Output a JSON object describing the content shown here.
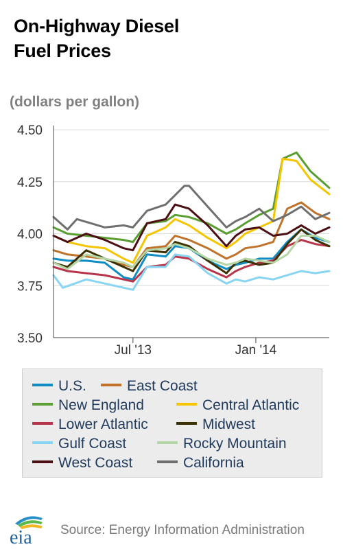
{
  "title_line1": "On-Highway Diesel",
  "title_line2": "Fuel Prices",
  "units": "(dollars per gallon)",
  "source": "Source: Energy Information Administration",
  "logo_text": "eia",
  "chart_data": {
    "type": "line",
    "title": "On-Highway Diesel Fuel Prices",
    "ylabel": "(dollars per gallon)",
    "ylim": [
      3.5,
      4.5
    ],
    "yticks": [
      {
        "value": 4.5,
        "label": "4.50"
      },
      {
        "value": 4.25,
        "label": "4.25"
      },
      {
        "value": 4.0,
        "label": "4.00"
      },
      {
        "value": 3.75,
        "label": "3.75"
      },
      {
        "value": 3.5,
        "label": "3.50"
      }
    ],
    "x_range": [
      "2013-03-04",
      "2014-04-21"
    ],
    "xticks": [
      {
        "date": "2013-07-01",
        "label": "Jul '13"
      },
      {
        "date": "2014-01-01",
        "label": "Jan '14"
      }
    ],
    "grid": "horizontal",
    "legend_position": "bottom",
    "series": [
      {
        "name": "U.S.",
        "color": "#0e8cc3",
        "points": [
          [
            "2013-03-04",
            3.88
          ],
          [
            "2013-03-25",
            3.87
          ],
          [
            "2013-04-22",
            3.87
          ],
          [
            "2013-05-20",
            3.86
          ],
          [
            "2013-06-17",
            3.79
          ],
          [
            "2013-07-01",
            3.78
          ],
          [
            "2013-07-22",
            3.9
          ],
          [
            "2013-08-19",
            3.89
          ],
          [
            "2013-09-02",
            3.94
          ],
          [
            "2013-09-23",
            3.93
          ],
          [
            "2013-10-21",
            3.87
          ],
          [
            "2013-11-18",
            3.83
          ],
          [
            "2013-12-02",
            3.85
          ],
          [
            "2013-12-16",
            3.86
          ],
          [
            "2014-01-06",
            3.88
          ],
          [
            "2014-01-27",
            3.88
          ],
          [
            "2014-02-17",
            3.96
          ],
          [
            "2014-03-10",
            4.02
          ],
          [
            "2014-03-31",
            3.98
          ],
          [
            "2014-04-21",
            3.96
          ]
        ]
      },
      {
        "name": "East Coast",
        "color": "#c0722b",
        "points": [
          [
            "2013-03-04",
            3.92
          ],
          [
            "2013-03-25",
            3.9
          ],
          [
            "2013-04-22",
            3.89
          ],
          [
            "2013-05-20",
            3.88
          ],
          [
            "2013-06-17",
            3.85
          ],
          [
            "2013-07-01",
            3.84
          ],
          [
            "2013-07-22",
            3.93
          ],
          [
            "2013-08-19",
            3.94
          ],
          [
            "2013-09-02",
            3.99
          ],
          [
            "2013-09-23",
            3.97
          ],
          [
            "2013-10-21",
            3.93
          ],
          [
            "2013-11-18",
            3.88
          ],
          [
            "2013-12-02",
            3.9
          ],
          [
            "2013-12-16",
            3.93
          ],
          [
            "2014-01-06",
            3.94
          ],
          [
            "2014-01-27",
            3.96
          ],
          [
            "2014-02-17",
            4.12
          ],
          [
            "2014-03-10",
            4.15
          ],
          [
            "2014-03-31",
            4.1
          ],
          [
            "2014-04-21",
            4.07
          ]
        ]
      },
      {
        "name": "New England",
        "color": "#5a9e32",
        "points": [
          [
            "2013-03-04",
            4.03
          ],
          [
            "2013-03-25",
            4.0
          ],
          [
            "2013-04-22",
            3.99
          ],
          [
            "2013-05-20",
            3.98
          ],
          [
            "2013-06-17",
            3.97
          ],
          [
            "2013-07-01",
            3.96
          ],
          [
            "2013-07-22",
            4.05
          ],
          [
            "2013-08-19",
            4.06
          ],
          [
            "2013-09-02",
            4.09
          ],
          [
            "2013-09-23",
            4.08
          ],
          [
            "2013-10-21",
            4.05
          ],
          [
            "2013-11-18",
            4.0
          ],
          [
            "2013-12-02",
            4.02
          ],
          [
            "2013-12-16",
            4.05
          ],
          [
            "2014-01-06",
            4.09
          ],
          [
            "2014-01-27",
            4.12
          ],
          [
            "2014-02-10",
            4.36
          ],
          [
            "2014-03-03",
            4.39
          ],
          [
            "2014-03-24",
            4.3
          ],
          [
            "2014-04-21",
            4.22
          ]
        ]
      },
      {
        "name": "Central Atlantic",
        "color": "#f5c500",
        "points": [
          [
            "2013-03-04",
            3.99
          ],
          [
            "2013-03-25",
            3.96
          ],
          [
            "2013-04-22",
            3.94
          ],
          [
            "2013-05-20",
            3.93
          ],
          [
            "2013-06-17",
            3.88
          ],
          [
            "2013-07-01",
            3.86
          ],
          [
            "2013-07-22",
            3.99
          ],
          [
            "2013-08-19",
            4.03
          ],
          [
            "2013-09-02",
            4.07
          ],
          [
            "2013-09-23",
            4.04
          ],
          [
            "2013-10-21",
            3.98
          ],
          [
            "2013-11-18",
            3.93
          ],
          [
            "2013-12-02",
            3.96
          ],
          [
            "2013-12-16",
            4.0
          ],
          [
            "2014-01-06",
            4.03
          ],
          [
            "2014-01-27",
            4.06
          ],
          [
            "2014-02-10",
            4.36
          ],
          [
            "2014-03-03",
            4.35
          ],
          [
            "2014-03-24",
            4.26
          ],
          [
            "2014-04-21",
            4.19
          ]
        ]
      },
      {
        "name": "Lower Atlantic",
        "color": "#b7344a",
        "points": [
          [
            "2013-03-04",
            3.84
          ],
          [
            "2013-03-25",
            3.82
          ],
          [
            "2013-04-22",
            3.81
          ],
          [
            "2013-05-20",
            3.8
          ],
          [
            "2013-06-17",
            3.78
          ],
          [
            "2013-07-01",
            3.77
          ],
          [
            "2013-07-22",
            3.84
          ],
          [
            "2013-08-19",
            3.85
          ],
          [
            "2013-09-02",
            3.89
          ],
          [
            "2013-09-23",
            3.88
          ],
          [
            "2013-10-21",
            3.83
          ],
          [
            "2013-11-18",
            3.79
          ],
          [
            "2013-12-02",
            3.82
          ],
          [
            "2013-12-16",
            3.84
          ],
          [
            "2014-01-06",
            3.86
          ],
          [
            "2014-01-27",
            3.87
          ],
          [
            "2014-02-17",
            3.94
          ],
          [
            "2014-03-10",
            3.97
          ],
          [
            "2014-03-31",
            3.95
          ],
          [
            "2014-04-21",
            3.94
          ]
        ]
      },
      {
        "name": "Midwest",
        "color": "#3d3000",
        "points": [
          [
            "2013-03-04",
            3.86
          ],
          [
            "2013-03-25",
            3.84
          ],
          [
            "2013-04-22",
            3.92
          ],
          [
            "2013-05-20",
            3.88
          ],
          [
            "2013-06-17",
            3.84
          ],
          [
            "2013-07-01",
            3.82
          ],
          [
            "2013-07-22",
            3.92
          ],
          [
            "2013-08-19",
            3.91
          ],
          [
            "2013-09-02",
            3.96
          ],
          [
            "2013-09-23",
            3.94
          ],
          [
            "2013-10-21",
            3.87
          ],
          [
            "2013-11-18",
            3.81
          ],
          [
            "2013-12-02",
            3.86
          ],
          [
            "2013-12-16",
            3.87
          ],
          [
            "2014-01-06",
            3.85
          ],
          [
            "2014-01-27",
            3.86
          ],
          [
            "2014-02-17",
            3.95
          ],
          [
            "2014-03-10",
            4.02
          ],
          [
            "2014-03-31",
            3.97
          ],
          [
            "2014-04-21",
            3.94
          ]
        ]
      },
      {
        "name": "Gulf Coast",
        "color": "#87d5f2",
        "points": [
          [
            "2013-03-04",
            3.8
          ],
          [
            "2013-03-18",
            3.74
          ],
          [
            "2013-04-22",
            3.78
          ],
          [
            "2013-05-20",
            3.76
          ],
          [
            "2013-06-17",
            3.74
          ],
          [
            "2013-07-01",
            3.73
          ],
          [
            "2013-07-22",
            3.84
          ],
          [
            "2013-08-19",
            3.84
          ],
          [
            "2013-09-02",
            3.9
          ],
          [
            "2013-09-23",
            3.89
          ],
          [
            "2013-10-21",
            3.81
          ],
          [
            "2013-11-18",
            3.76
          ],
          [
            "2013-12-02",
            3.78
          ],
          [
            "2013-12-16",
            3.77
          ],
          [
            "2014-01-06",
            3.79
          ],
          [
            "2014-01-27",
            3.78
          ],
          [
            "2014-02-17",
            3.8
          ],
          [
            "2014-03-10",
            3.82
          ],
          [
            "2014-03-31",
            3.81
          ],
          [
            "2014-04-21",
            3.82
          ]
        ]
      },
      {
        "name": "Rocky Mountain",
        "color": "#b5d6a5",
        "points": [
          [
            "2013-03-04",
            3.86
          ],
          [
            "2013-03-25",
            3.83
          ],
          [
            "2013-04-22",
            3.9
          ],
          [
            "2013-05-20",
            3.88
          ],
          [
            "2013-06-17",
            3.86
          ],
          [
            "2013-07-01",
            3.84
          ],
          [
            "2013-07-22",
            3.92
          ],
          [
            "2013-08-19",
            3.93
          ],
          [
            "2013-09-02",
            3.95
          ],
          [
            "2013-09-23",
            3.93
          ],
          [
            "2013-10-21",
            3.88
          ],
          [
            "2013-11-18",
            3.85
          ],
          [
            "2013-12-02",
            3.86
          ],
          [
            "2013-12-16",
            3.88
          ],
          [
            "2014-01-06",
            3.87
          ],
          [
            "2014-01-27",
            3.86
          ],
          [
            "2014-02-17",
            3.9
          ],
          [
            "2014-03-10",
            3.99
          ],
          [
            "2014-03-31",
            3.99
          ],
          [
            "2014-04-21",
            3.96
          ]
        ]
      },
      {
        "name": "West Coast",
        "color": "#4b0f14",
        "points": [
          [
            "2013-03-04",
            3.99
          ],
          [
            "2013-03-25",
            3.96
          ],
          [
            "2013-04-22",
            4.0
          ],
          [
            "2013-05-20",
            3.97
          ],
          [
            "2013-06-17",
            3.93
          ],
          [
            "2013-07-01",
            3.92
          ],
          [
            "2013-07-22",
            4.05
          ],
          [
            "2013-08-19",
            4.07
          ],
          [
            "2013-09-02",
            4.14
          ],
          [
            "2013-09-23",
            4.12
          ],
          [
            "2013-10-21",
            4.04
          ],
          [
            "2013-11-18",
            3.94
          ],
          [
            "2013-12-02",
            3.99
          ],
          [
            "2013-12-16",
            4.02
          ],
          [
            "2014-01-06",
            4.03
          ],
          [
            "2014-01-27",
            3.99
          ],
          [
            "2014-02-17",
            4.0
          ],
          [
            "2014-03-10",
            4.04
          ],
          [
            "2014-03-31",
            4.0
          ],
          [
            "2014-04-21",
            4.03
          ]
        ]
      },
      {
        "name": "California",
        "color": "#6f6f6f",
        "points": [
          [
            "2013-03-04",
            4.08
          ],
          [
            "2013-03-25",
            4.02
          ],
          [
            "2013-04-08",
            4.07
          ],
          [
            "2013-05-20",
            4.03
          ],
          [
            "2013-06-17",
            4.04
          ],
          [
            "2013-07-01",
            4.03
          ],
          [
            "2013-07-22",
            4.11
          ],
          [
            "2013-08-19",
            4.14
          ],
          [
            "2013-09-16",
            4.23
          ],
          [
            "2013-09-23",
            4.23
          ],
          [
            "2013-10-21",
            4.13
          ],
          [
            "2013-11-18",
            4.03
          ],
          [
            "2013-12-02",
            4.06
          ],
          [
            "2013-12-16",
            4.08
          ],
          [
            "2014-01-06",
            4.12
          ],
          [
            "2014-01-27",
            4.06
          ],
          [
            "2014-02-17",
            4.09
          ],
          [
            "2014-03-10",
            4.13
          ],
          [
            "2014-03-31",
            4.07
          ],
          [
            "2014-04-21",
            4.1
          ]
        ]
      }
    ]
  }
}
